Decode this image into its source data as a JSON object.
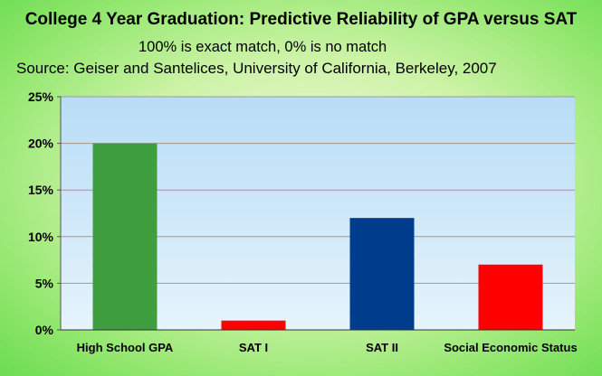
{
  "chart_data": {
    "type": "bar",
    "title": "College 4 Year Graduation: Predictive Reliability of GPA versus SAT",
    "subtitle": "100% is exact match, 0% is no match",
    "source": "Source: Geiser and Santelices, University of California, Berkeley, 2007",
    "categories": [
      "High School GPA",
      "SAT I",
      "SAT II",
      "Social Economic Status"
    ],
    "values": [
      20,
      1,
      12,
      7
    ],
    "unit": "%",
    "bar_colors": [
      "#3f9f3f",
      "#ff0000",
      "#003c8c",
      "#ff0000"
    ],
    "yticks": [
      "0%",
      "5%",
      "10%",
      "15%",
      "20%",
      "25%"
    ],
    "ylim": [
      0,
      25
    ],
    "ystep": 5,
    "grid": true,
    "legend": "none",
    "plot_background": "gradient light blue"
  }
}
